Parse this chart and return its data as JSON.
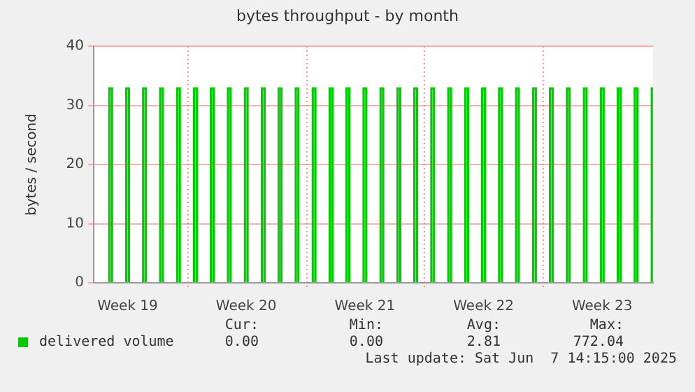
{
  "chart_data": {
    "type": "bar",
    "title": "bytes throughput - by month",
    "ylabel": "bytes / second",
    "categories": [
      null,
      null,
      null,
      null,
      "Week 19",
      null,
      null,
      null,
      null,
      null,
      null,
      null,
      null,
      null,
      null,
      null,
      null,
      null,
      "Week 20",
      null,
      null,
      null,
      null,
      null,
      null,
      null,
      null,
      null,
      null,
      null,
      null,
      null,
      "Week 21",
      null,
      null,
      null,
      null,
      null,
      null,
      null,
      null,
      null,
      null,
      null,
      null,
      null,
      "Week 22",
      null,
      null,
      null,
      null,
      null,
      null,
      null,
      null,
      null,
      null,
      null,
      null,
      null,
      "Week 23",
      null,
      null,
      null,
      null,
      null,
      null
    ],
    "ylim": [
      0,
      40
    ],
    "yticks": [
      0,
      10,
      20,
      30,
      40
    ],
    "grid": true,
    "legend": "bottom left",
    "series": [
      {
        "name": "delivered volume",
        "color": "#00cc00",
        "values": [
          0,
          0,
          33,
          0,
          33,
          0,
          33,
          0,
          33,
          0,
          33,
          0,
          33,
          0,
          33,
          0,
          33,
          0,
          33,
          0,
          33,
          0,
          33,
          0,
          33,
          0,
          33,
          0,
          33,
          0,
          33,
          0,
          33,
          0,
          33,
          0,
          33,
          0,
          33,
          0,
          33,
          0,
          33,
          0,
          33,
          0,
          33,
          0,
          33,
          0,
          33,
          0,
          33,
          0,
          33,
          0,
          33,
          0,
          33,
          0,
          33,
          0,
          33,
          0,
          33,
          0,
          33
        ]
      }
    ],
    "annotations": [
      "Cur:",
      "Min:",
      "Avg:",
      "Max:",
      "0.00",
      "0.00",
      "2.81",
      "772.04",
      "Last update: Sat Jun  7 14:15:00 2025"
    ]
  }
}
